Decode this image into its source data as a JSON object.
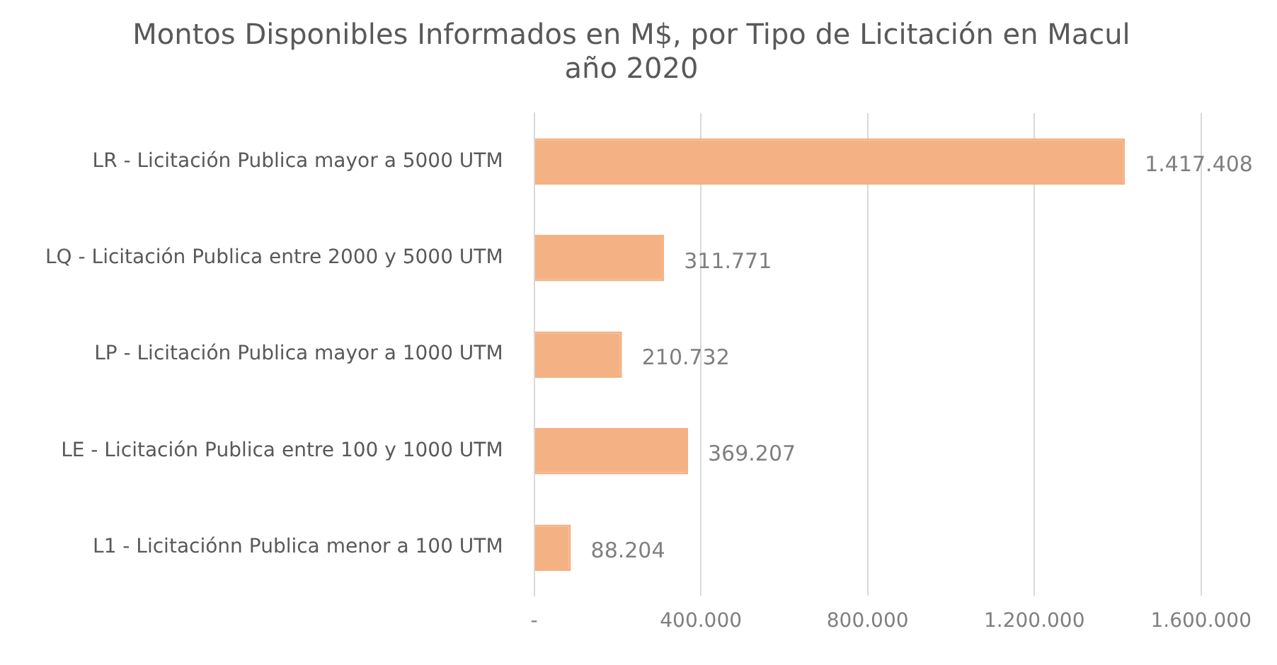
{
  "chart_data": {
    "type": "bar",
    "orientation": "horizontal",
    "title": "Montos Disponibles Informados en M$, por Tipo de Licitación en Macul\naño 2020",
    "categories": [
      "LR - Licitación Publica mayor a 5000 UTM",
      "LQ - Licitación Publica entre 2000 y 5000 UTM",
      "LP - Licitación Publica mayor a 1000 UTM",
      "LE - Licitación Publica entre 100 y 1000 UTM",
      "L1 - Licitaciónn Publica menor a 100 UTM"
    ],
    "values": [
      1417408,
      311771,
      210732,
      369207,
      88204
    ],
    "value_labels": [
      "1.417.408",
      "311.771",
      "210.732",
      "369.207",
      "88.204"
    ],
    "color": "#f4b183",
    "xlim": [
      0,
      1600000
    ],
    "xticks": [
      {
        "value": 0,
        "label": "-"
      },
      {
        "value": 400000,
        "label": "400.000"
      },
      {
        "value": 800000,
        "label": "800.000"
      },
      {
        "value": 1200000,
        "label": "1.200.000"
      },
      {
        "value": 1600000,
        "label": "1.600.000"
      }
    ],
    "grid": "x",
    "legend": false
  }
}
